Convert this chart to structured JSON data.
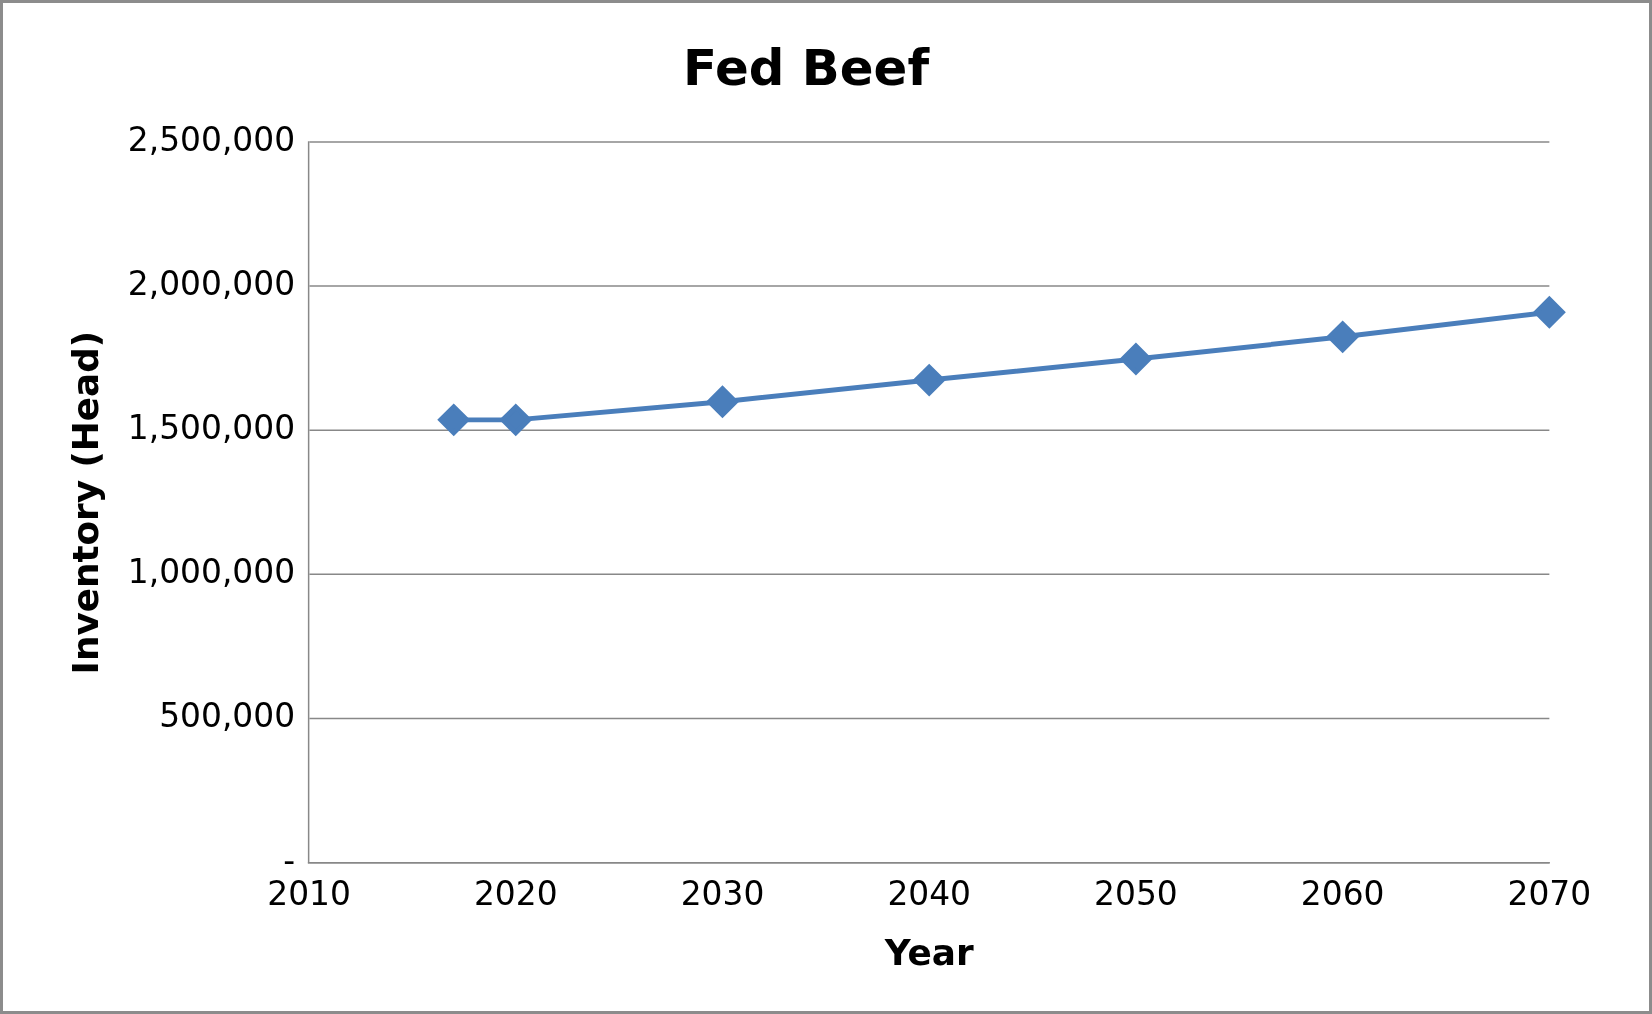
{
  "chart_data": {
    "type": "line",
    "title": "Fed Beef",
    "xlabel": "Year",
    "ylabel": "Inventory (Head)",
    "x": [
      2017,
      2020,
      2030,
      2040,
      2050,
      2060,
      2070
    ],
    "series": [
      {
        "color": "#4a7ebb",
        "values": [
          1537000,
          1537000,
          1600000,
          1675000,
          1748000,
          1825000,
          1910000
        ]
      }
    ],
    "xlim": [
      2010,
      2070
    ],
    "xticks": [
      2010,
      2020,
      2030,
      2040,
      2050,
      2060,
      2070
    ],
    "ylim": [
      0,
      2500000
    ],
    "yticks": [
      {
        "value": 0,
        "label": "-"
      },
      {
        "value": 500000,
        "label": "500,000"
      },
      {
        "value": 1000000,
        "label": "1,000,000"
      },
      {
        "value": 1500000,
        "label": "1,500,000"
      },
      {
        "value": 2000000,
        "label": "2,000,000"
      },
      {
        "value": 2500000,
        "label": "2,500,000"
      }
    ],
    "grid": "y",
    "legend": false,
    "marker": "diamond",
    "line_style": "solid"
  }
}
